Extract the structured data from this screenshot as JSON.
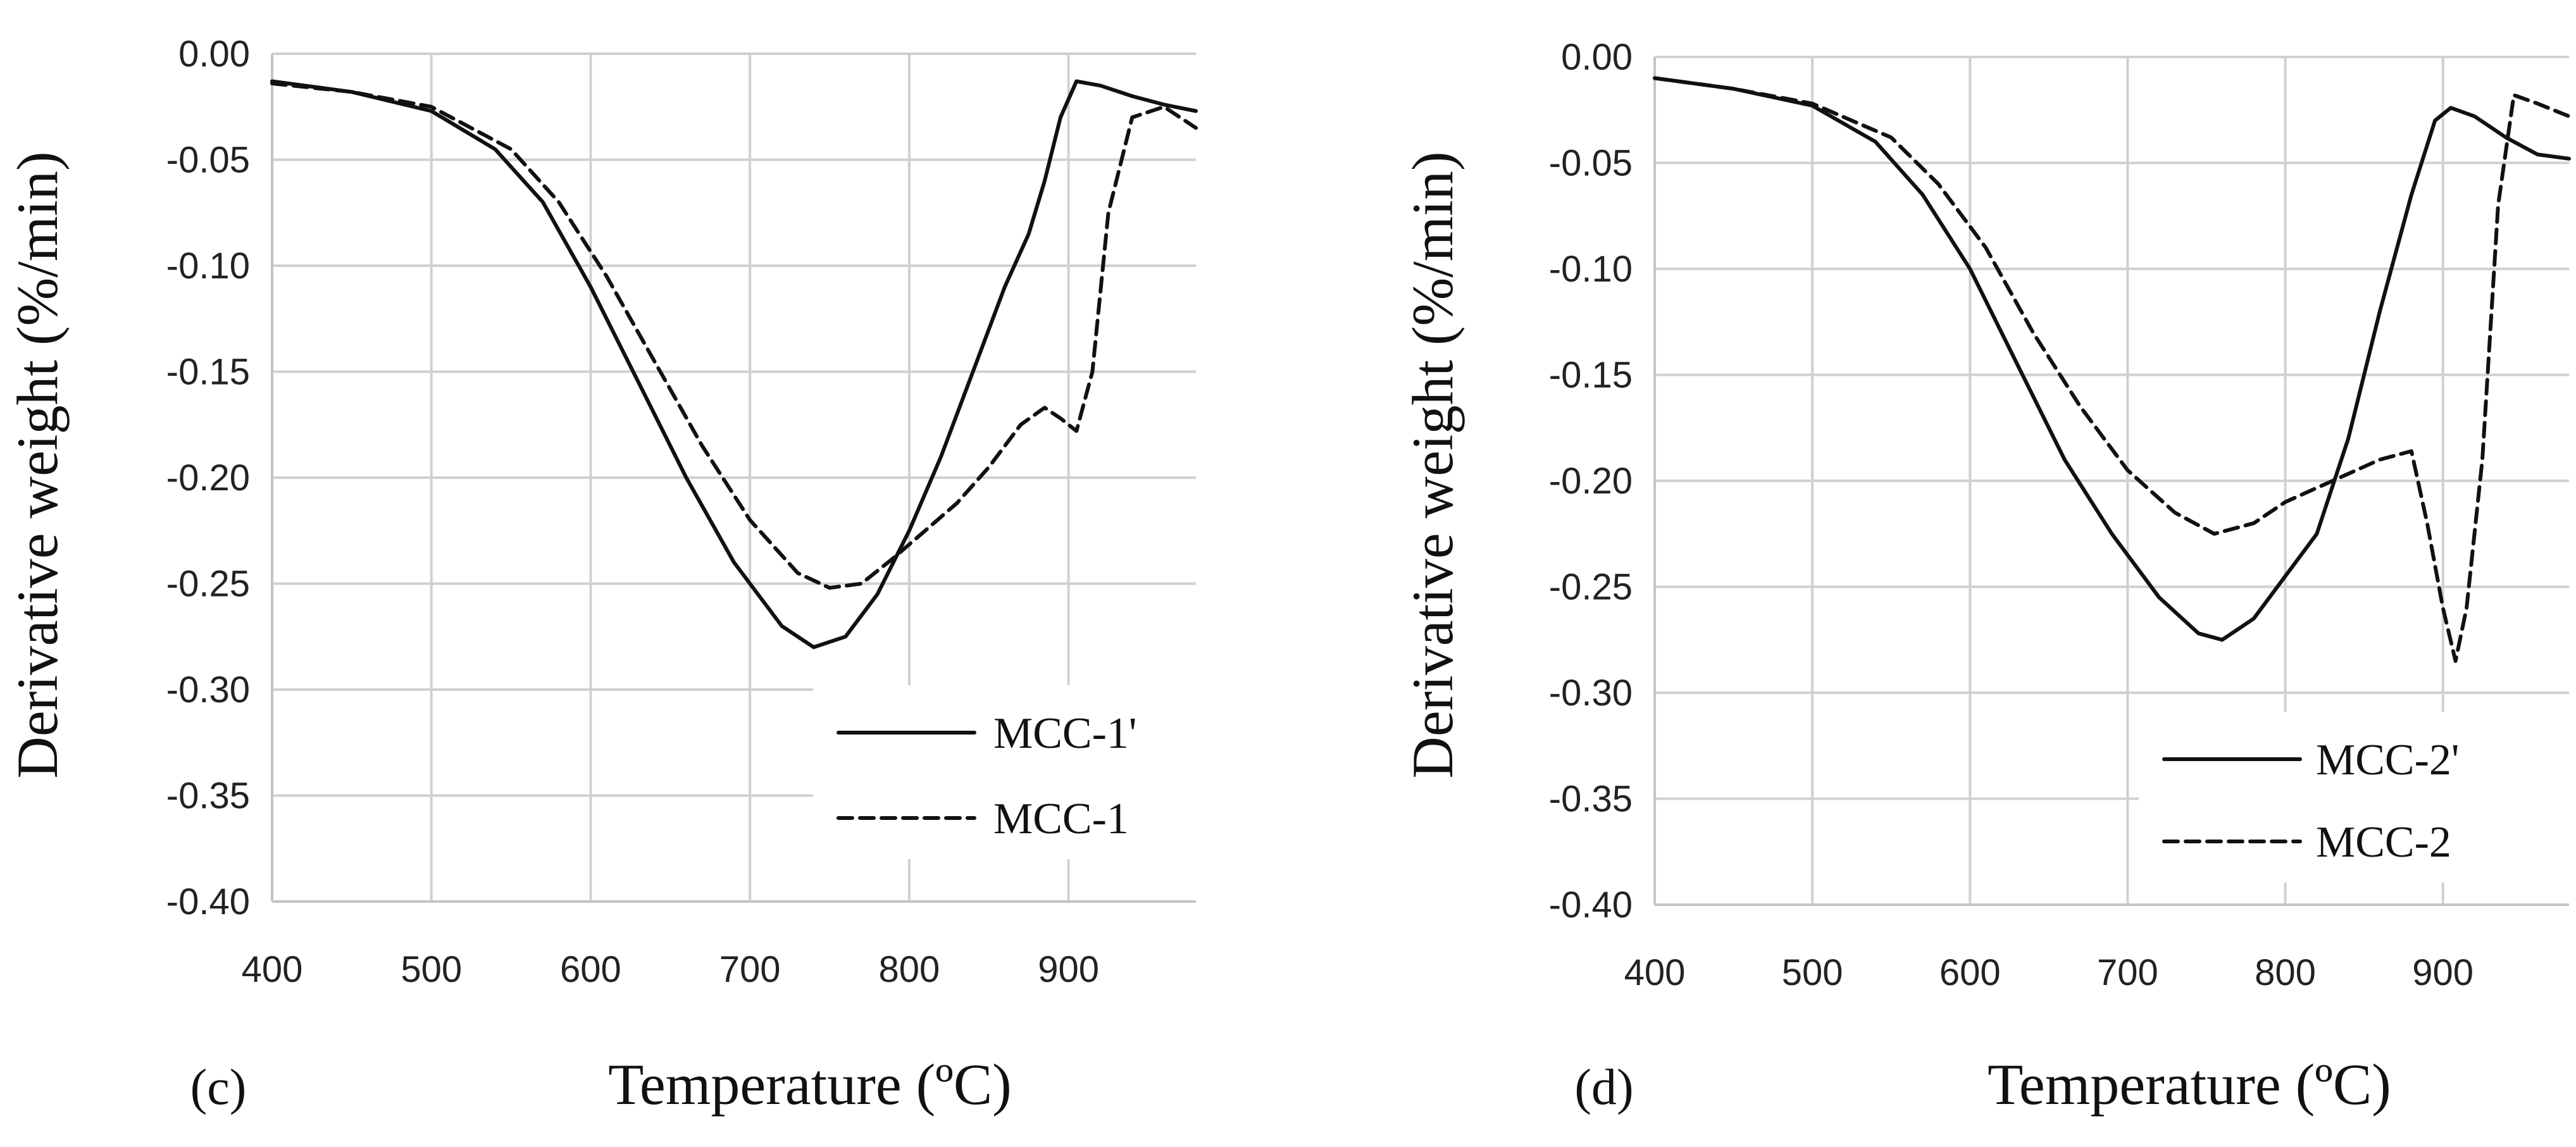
{
  "chart_data": [
    {
      "type": "line",
      "panel_label": "(c)",
      "xlabel": "Temperature (ºC)",
      "ylabel": "Derivative weight (%/min)",
      "xlim": [
        400,
        980
      ],
      "ylim": [
        -0.4,
        0.0
      ],
      "xticks": [
        400,
        500,
        600,
        700,
        800,
        900
      ],
      "xtick_labels": [
        "400",
        "500",
        "600",
        "700",
        "800",
        "900"
      ],
      "yticks": [
        0.0,
        -0.05,
        -0.1,
        -0.15,
        -0.2,
        -0.25,
        -0.3,
        -0.35,
        -0.4
      ],
      "ytick_labels": [
        "0.00",
        "-0.05",
        "-0.10",
        "-0.15",
        "-0.20",
        "-0.25",
        "-0.30",
        "-0.35",
        "-0.40"
      ],
      "grid": true,
      "legend_position": "bottom-right",
      "series": [
        {
          "name": "MCC-1'",
          "style": "solid",
          "x": [
            400,
            450,
            500,
            540,
            570,
            600,
            630,
            660,
            690,
            720,
            740,
            760,
            780,
            800,
            820,
            840,
            860,
            875,
            885,
            895,
            905,
            920,
            940,
            960,
            980
          ],
          "y": [
            -0.013,
            -0.018,
            -0.027,
            -0.045,
            -0.07,
            -0.11,
            -0.155,
            -0.2,
            -0.24,
            -0.27,
            -0.28,
            -0.275,
            -0.255,
            -0.225,
            -0.19,
            -0.15,
            -0.11,
            -0.085,
            -0.06,
            -0.03,
            -0.013,
            -0.015,
            -0.02,
            -0.024,
            -0.027
          ]
        },
        {
          "name": "MCC-1",
          "style": "dashed",
          "x": [
            400,
            450,
            500,
            550,
            580,
            610,
            640,
            670,
            700,
            730,
            750,
            770,
            790,
            810,
            830,
            850,
            870,
            885,
            895,
            905,
            915,
            925,
            940,
            960,
            980
          ],
          "y": [
            -0.014,
            -0.018,
            -0.025,
            -0.045,
            -0.07,
            -0.105,
            -0.145,
            -0.185,
            -0.22,
            -0.245,
            -0.252,
            -0.25,
            -0.238,
            -0.225,
            -0.212,
            -0.195,
            -0.175,
            -0.167,
            -0.172,
            -0.178,
            -0.15,
            -0.075,
            -0.03,
            -0.025,
            -0.035
          ]
        }
      ]
    },
    {
      "type": "line",
      "panel_label": "(d)",
      "xlabel": "Temperature (ºC)",
      "ylabel": "Derivative weight (%/min)",
      "xlim": [
        400,
        980
      ],
      "ylim": [
        -0.4,
        0.0
      ],
      "xticks": [
        400,
        500,
        600,
        700,
        800,
        900
      ],
      "xtick_labels": [
        "400",
        "500",
        "600",
        "700",
        "800",
        "900"
      ],
      "yticks": [
        0.0,
        -0.05,
        -0.1,
        -0.15,
        -0.2,
        -0.25,
        -0.3,
        -0.35,
        -0.4
      ],
      "ytick_labels": [
        "0.00",
        "-0.05",
        "-0.10",
        "-0.15",
        "-0.20",
        "-0.25",
        "-0.30",
        "-0.35",
        "-0.40"
      ],
      "grid": true,
      "legend_position": "bottom-right",
      "series": [
        {
          "name": "MCC-2'",
          "style": "solid",
          "x": [
            400,
            450,
            500,
            540,
            570,
            600,
            630,
            660,
            690,
            720,
            745,
            760,
            780,
            800,
            820,
            840,
            860,
            880,
            895,
            905,
            920,
            940,
            960,
            980
          ],
          "y": [
            -0.01,
            -0.015,
            -0.023,
            -0.04,
            -0.065,
            -0.1,
            -0.145,
            -0.19,
            -0.225,
            -0.255,
            -0.272,
            -0.275,
            -0.265,
            -0.245,
            -0.225,
            -0.18,
            -0.12,
            -0.065,
            -0.03,
            -0.024,
            -0.028,
            -0.038,
            -0.046,
            -0.048
          ]
        },
        {
          "name": "MCC-2",
          "style": "dashed",
          "x": [
            400,
            450,
            500,
            550,
            580,
            610,
            640,
            670,
            700,
            730,
            755,
            780,
            800,
            830,
            860,
            880,
            890,
            900,
            908,
            915,
            925,
            935,
            945,
            960,
            980
          ],
          "y": [
            -0.01,
            -0.015,
            -0.022,
            -0.038,
            -0.06,
            -0.09,
            -0.13,
            -0.165,
            -0.195,
            -0.215,
            -0.225,
            -0.22,
            -0.21,
            -0.2,
            -0.19,
            -0.186,
            -0.22,
            -0.26,
            -0.285,
            -0.26,
            -0.19,
            -0.07,
            -0.018,
            -0.022,
            -0.028
          ]
        }
      ]
    }
  ]
}
